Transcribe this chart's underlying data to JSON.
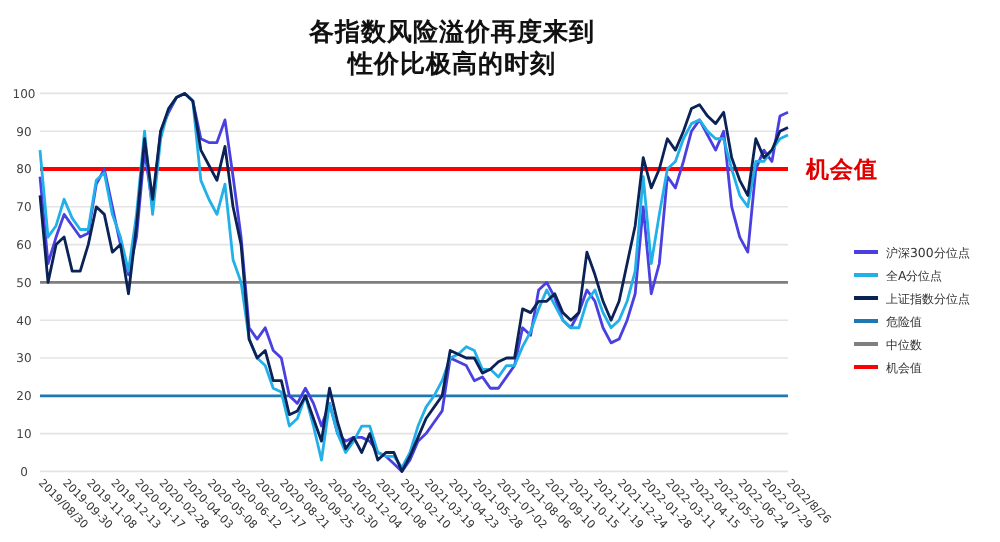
{
  "chart_data": {
    "type": "line",
    "title": "各指数风险溢价再度来到",
    "subtitle": "性价比极高的时刻",
    "categories": [
      "2019/08/30",
      null,
      null,
      "2019-09-30",
      null,
      null,
      "2019-11-08",
      null,
      null,
      "2019-12-13",
      null,
      null,
      "2020-01-17",
      null,
      null,
      "2020-02-28",
      null,
      null,
      "2020-04-03",
      null,
      null,
      "2020-05-08",
      null,
      null,
      "2020-06-12",
      null,
      null,
      "2020-07-17",
      null,
      null,
      "2020-08-21",
      null,
      null,
      "2020-09-25",
      null,
      null,
      "2020-10-30",
      null,
      null,
      "2020-12-04",
      null,
      null,
      "2021-01-08",
      null,
      null,
      "2021-02-10",
      null,
      null,
      "2021-03-19",
      null,
      null,
      "2021-04-23",
      null,
      null,
      "2021-05-28",
      null,
      null,
      "2021-07-02",
      null,
      null,
      "2021-08-06",
      null,
      null,
      "2021-09-10",
      null,
      null,
      "2021-10-15",
      null,
      null,
      "2021-11-19",
      null,
      null,
      "2021-12-24",
      null,
      null,
      "2022-01-28",
      null,
      null,
      "2022-03-11",
      null,
      null,
      "2022-04-15",
      null,
      null,
      "2022-05-20",
      null,
      null,
      "2022-06-24",
      null,
      null,
      "2022-07-29",
      null,
      null,
      "2022/8/26"
    ],
    "series": [
      {
        "name": "沪深300分位点",
        "color": "#4a3fe0",
        "values": [
          78,
          55,
          62,
          68,
          65,
          62,
          63,
          76,
          80,
          70,
          60,
          52,
          62,
          85,
          70,
          90,
          95,
          99,
          100,
          98,
          88,
          87,
          87,
          93,
          78,
          62,
          38,
          35,
          38,
          32,
          30,
          20,
          18,
          22,
          18,
          12,
          18,
          10,
          8,
          9,
          9,
          8,
          5,
          4,
          2,
          0,
          3,
          8,
          10,
          13,
          16,
          30,
          29,
          28,
          24,
          25,
          22,
          22,
          25,
          28,
          38,
          36,
          48,
          50,
          46,
          40,
          38,
          42,
          48,
          45,
          38,
          34,
          35,
          40,
          47,
          70,
          47,
          55,
          78,
          75,
          82,
          90,
          93,
          89,
          85,
          90,
          70,
          62,
          58,
          80,
          85,
          82,
          94,
          95
        ]
      },
      {
        "name": "全A分位点",
        "color": "#22b0e8",
        "values": [
          85,
          62,
          65,
          72,
          67,
          64,
          64,
          77,
          79,
          68,
          62,
          53,
          68,
          90,
          68,
          88,
          96,
          99,
          100,
          98,
          77,
          72,
          68,
          76,
          56,
          50,
          35,
          30,
          28,
          22,
          21,
          12,
          14,
          20,
          12,
          3,
          18,
          10,
          5,
          8,
          12,
          12,
          5,
          4,
          4,
          1,
          5,
          12,
          17,
          20,
          24,
          30,
          31,
          33,
          32,
          27,
          27,
          25,
          28,
          28,
          33,
          37,
          43,
          48,
          44,
          40,
          38,
          38,
          45,
          48,
          42,
          38,
          40,
          45,
          53,
          78,
          55,
          68,
          80,
          82,
          88,
          92,
          93,
          90,
          88,
          88,
          80,
          73,
          70,
          82,
          82,
          85,
          88,
          89
        ]
      },
      {
        "name": "上证指数分位点",
        "color": "#0b2257",
        "values": [
          73,
          50,
          60,
          62,
          53,
          53,
          60,
          70,
          68,
          58,
          60,
          47,
          65,
          88,
          72,
          90,
          96,
          99,
          100,
          98,
          85,
          81,
          77,
          86,
          70,
          60,
          35,
          30,
          32,
          24,
          24,
          15,
          16,
          20,
          14,
          8,
          22,
          13,
          6,
          9,
          5,
          10,
          3,
          5,
          5,
          0,
          4,
          9,
          14,
          17,
          20,
          32,
          31,
          30,
          30,
          26,
          27,
          29,
          30,
          30,
          43,
          42,
          45,
          45,
          47,
          42,
          40,
          42,
          58,
          52,
          45,
          40,
          45,
          55,
          65,
          83,
          75,
          80,
          88,
          85,
          90,
          96,
          97,
          94,
          92,
          95,
          83,
          77,
          73,
          88,
          83,
          85,
          90,
          91
        ]
      }
    ],
    "ref_lines": [
      {
        "axis": "y",
        "value": 20,
        "label": "危险值",
        "color": "#1f77b4"
      },
      {
        "axis": "y",
        "value": 50,
        "label": "中位数",
        "color": "#7f7f7f"
      },
      {
        "axis": "y",
        "value": 80,
        "label": "机会值",
        "color": "#ff0000"
      }
    ],
    "annotations": [
      {
        "text": "机会值",
        "x": "2022/8/26",
        "y": 80
      }
    ],
    "ylim": [
      0,
      100
    ],
    "yticks": [
      0,
      10,
      20,
      30,
      40,
      50,
      60,
      70,
      80,
      90,
      100
    ],
    "grid": "y",
    "legend": "right",
    "marker": "none",
    "line_style": "solid"
  }
}
